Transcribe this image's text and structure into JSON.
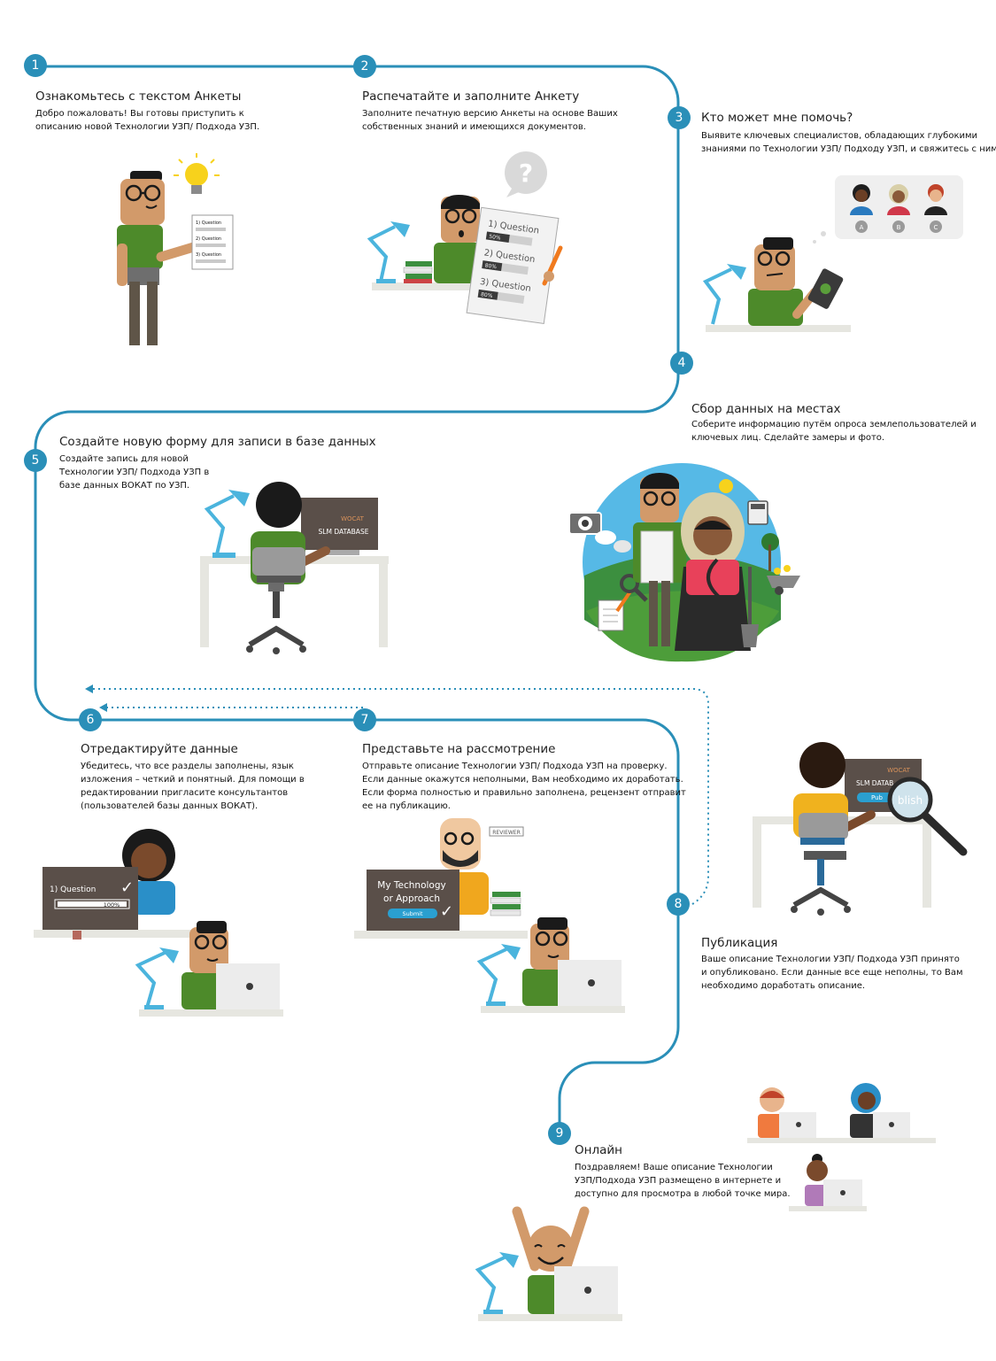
{
  "steps": [
    {
      "number": "1",
      "title": "Ознакомьтесь с текстом Анкеты",
      "lines": [
        "Добро пожаловать! Вы готовы приступить к",
        "описанию новой Технологии УЗП/ Подхода УЗП."
      ]
    },
    {
      "number": "2",
      "title": "Распечатайте и заполните Анкету",
      "lines": [
        "Заполните печатную версию Анкеты на основе Ваших",
        "собственных знаний и имеющихся документов."
      ]
    },
    {
      "number": "3",
      "title": "Кто может мне помочь?",
      "lines": [
        "Выявите ключевых специалистов, обладающих глубокими",
        "знаниями по Технологии УЗП/ Подходу УЗП, и свяжитесь с ними."
      ]
    },
    {
      "number": "4",
      "title": "Сбор данных на местах",
      "lines": [
        "Соберите информацию путём опроса землепользователей и",
        "ключевых лиц. Сделайте замеры и фото."
      ]
    },
    {
      "number": "5",
      "title": "Создайте новую форму для записи в базе данных",
      "lines": [
        "Создайте запись для новой",
        "Технологии УЗП/ Подхода УЗП в",
        "базе данных ВОКАТ по УЗП."
      ]
    },
    {
      "number": "6",
      "title": "Отредактируйте данные",
      "lines": [
        "Убедитесь, что все разделы заполнены, язык",
        "изложения – четкий и понятный. Для помощи в",
        "редактировании пригласите консультантов",
        "(пользователей базы данных ВОКАТ)."
      ]
    },
    {
      "number": "7",
      "title": "Представьте на рассмотрение",
      "lines": [
        "Отправьте описание Технологии УЗП/ Подхода УЗП на проверку.",
        "Если данные окажутся неполными, Вам необходимо их доработать.",
        "Если форма полностью и правильно заполнена, рецензент отправит",
        "ее на публикацию."
      ]
    },
    {
      "number": "8",
      "title": "Публикация",
      "lines": [
        "Ваше описание Технологии УЗП/ Подхода УЗП принято",
        "и опубликовано. Если данные все еще неполны, то Вам",
        "необходимо доработать описание."
      ]
    },
    {
      "number": "9",
      "title": "Онлайн",
      "lines": [
        "Поздравляем! Ваше описание Технологии",
        "УЗП/Подхода УЗП размещено в интернете и",
        "доступно для просмотра в любой точке мира."
      ]
    }
  ],
  "illustrations": {
    "step1_sheet": [
      "1) Question",
      "2) Question",
      "3) Question"
    ],
    "step2_sheet": {
      "items": [
        "1) Question",
        "2) Question",
        "3) Question"
      ],
      "progress": [
        "50%",
        "80%",
        "80%"
      ]
    },
    "step2_bubble": "?",
    "step3_contacts": [
      "A",
      "B",
      "C"
    ],
    "step5_screen": {
      "brand": "WOCAT",
      "label": "SLM DATABASE"
    },
    "step6_screen": {
      "item": "1) Question",
      "progress": "100%",
      "check": "✓"
    },
    "step7_screen": {
      "line1": "My Technology",
      "line2": "or Approach",
      "button": "Submit",
      "check": "✓"
    },
    "step7_sign": "REVIEWER",
    "step8_screen": {
      "brand": "WOCAT",
      "label": "SLM DATAB",
      "button": "Pub",
      "magnified": "blish"
    }
  },
  "colors": {
    "path": "#2a8fb8",
    "badge": "#2a8fb8",
    "shirt_green": "#4d8a2a",
    "lamp_blue": "#4bb4dd",
    "dark_screen": "#5a4f49",
    "light_screen": "#ececec",
    "bulb": "#f7d21c"
  }
}
